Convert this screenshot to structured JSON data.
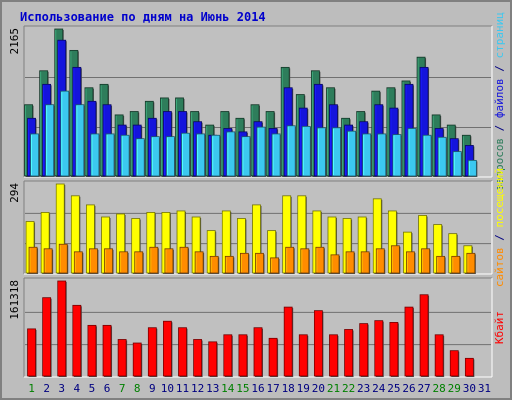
{
  "chart_data": {
    "type": "bar",
    "title": "Использование по дням на Июнь 2014",
    "colors": {
      "background": "#bdbdbd",
      "plot": "#c0c0c0",
      "title": "#0000cc",
      "requests": "#2e7d5b",
      "files": "#1414dc",
      "pages": "#3cc8f0",
      "visits": "#ffff00",
      "sites": "#ff8c00",
      "kbytes": "#ff0000",
      "weekend_label": "#008000",
      "weekday_label": "#000080"
    },
    "days": [
      "1",
      "2",
      "3",
      "4",
      "5",
      "6",
      "7",
      "8",
      "9",
      "10",
      "11",
      "12",
      "13",
      "14",
      "15",
      "16",
      "17",
      "18",
      "19",
      "20",
      "21",
      "22",
      "23",
      "24",
      "25",
      "26",
      "27",
      "28",
      "29",
      "30",
      "31"
    ],
    "weekend_days": [
      "1",
      "7",
      "8",
      "14",
      "15",
      "21",
      "22",
      "28",
      "29"
    ],
    "panels": [
      {
        "id": "hits",
        "max_label": "2165",
        "ymax": 2165,
        "right_label_parts": [
          {
            "text": "запросов",
            "color_key": "requests"
          },
          {
            "text": " / ",
            "color_key": "weekday_label"
          },
          {
            "text": "файлов",
            "color_key": "files"
          },
          {
            "text": " / ",
            "color_key": "weekday_label"
          },
          {
            "text": "страниц",
            "color_key": "pages"
          }
        ],
        "series": [
          {
            "name": "запросов",
            "color_key": "requests",
            "values": [
              1050,
              1550,
              2165,
              1850,
              1300,
              1350,
              900,
              950,
              1100,
              1150,
              1150,
              950,
              750,
              950,
              850,
              1050,
              950,
              1600,
              1200,
              1550,
              1300,
              850,
              950,
              1250,
              1300,
              1400,
              1750,
              900,
              750,
              600,
              0
            ]
          },
          {
            "name": "файлов",
            "color_key": "files",
            "values": [
              850,
              1350,
              2000,
              1600,
              1100,
              1050,
              750,
              750,
              850,
              950,
              950,
              800,
              600,
              700,
              650,
              800,
              700,
              1300,
              1000,
              1350,
              1050,
              750,
              800,
              1050,
              1000,
              1350,
              1600,
              700,
              550,
              450,
              0
            ]
          },
          {
            "name": "страниц",
            "color_key": "pages",
            "values": [
              620,
              1050,
              1250,
              1050,
              620,
              620,
              600,
              550,
              580,
              580,
              630,
              620,
              600,
              650,
              580,
              720,
              620,
              740,
              730,
              710,
              710,
              660,
              620,
              620,
              610,
              700,
              600,
              570,
              360,
              230,
              0
            ]
          }
        ]
      },
      {
        "id": "visits",
        "max_label": "294",
        "ymax": 294,
        "right_label_parts": [
          {
            "text": "сайтов",
            "color_key": "sites"
          },
          {
            "text": " / ",
            "color_key": "weekday_label"
          },
          {
            "text": "посещений",
            "color_key": "visits"
          }
        ],
        "series": [
          {
            "name": "посещений",
            "color_key": "visits",
            "values": [
              170,
              200,
              294,
              255,
              225,
              185,
              195,
              180,
              200,
              200,
              205,
              185,
              140,
              205,
              180,
              225,
              140,
              255,
              255,
              205,
              185,
              180,
              185,
              245,
              205,
              135,
              190,
              160,
              130,
              90,
              0
            ]
          },
          {
            "name": "сайтов",
            "color_key": "sites",
            "values": [
              85,
              80,
              95,
              70,
              80,
              80,
              70,
              70,
              85,
              80,
              85,
              70,
              55,
              55,
              65,
              65,
              50,
              85,
              80,
              85,
              60,
              70,
              70,
              80,
              90,
              70,
              80,
              55,
              55,
              65,
              0
            ]
          }
        ]
      },
      {
        "id": "kbytes",
        "max_label": "161318",
        "ymax": 161318,
        "right_label_parts": [
          {
            "text": "Кбайт",
            "color_key": "kbytes"
          }
        ],
        "series": [
          {
            "name": "Кбайт",
            "color_key": "kbytes",
            "values": [
              80000,
              133000,
              161318,
              120000,
              86000,
              86000,
              62000,
              56000,
              82000,
              93000,
              82000,
              62000,
              58000,
              70000,
              70000,
              82000,
              64000,
              117000,
              70000,
              111000,
              70000,
              79000,
              89000,
              94000,
              91000,
              117000,
              138000,
              70000,
              43000,
              30000,
              0
            ]
          }
        ]
      }
    ]
  }
}
